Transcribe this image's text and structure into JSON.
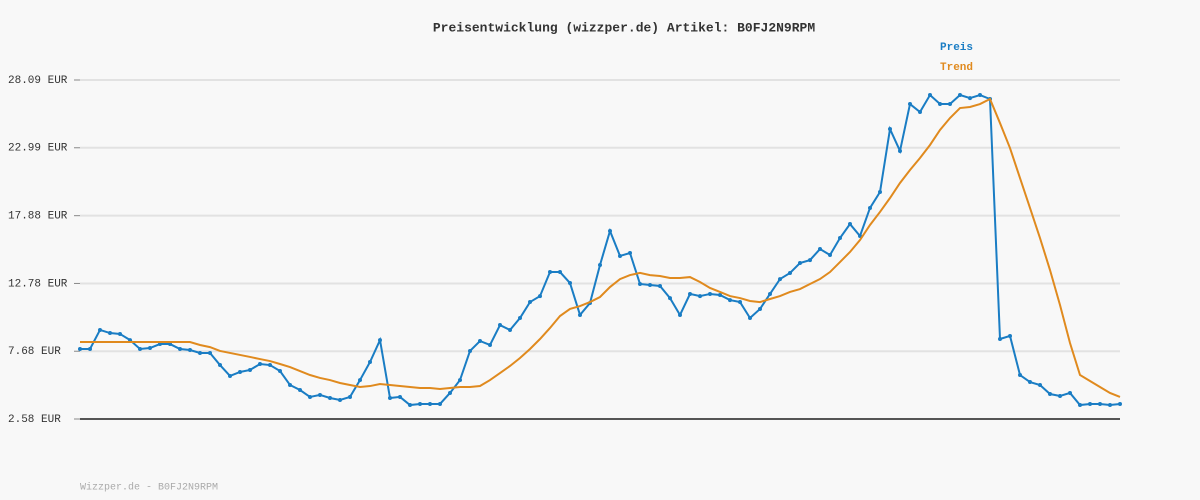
{
  "chart_data": {
    "type": "line",
    "title": "Preisentwicklung (wizzper.de) Artikel: B0FJ2N9RPM",
    "footer": "Wizzper.de - B0FJ2N9RPM",
    "categories": [
      null,
      null,
      null,
      null,
      null,
      null,
      null,
      null,
      null,
      null,
      null,
      null,
      null,
      null,
      null,
      null,
      null,
      null,
      null,
      null,
      null,
      null,
      null,
      null,
      null,
      null,
      null,
      null,
      null,
      null,
      null,
      null,
      null,
      null,
      null,
      null,
      null,
      null,
      null,
      null,
      null,
      null,
      null,
      null,
      null,
      null,
      null,
      null,
      null,
      null,
      null,
      null,
      null,
      null,
      null,
      null,
      null,
      null,
      null,
      null,
      null,
      null,
      null,
      null,
      null,
      null,
      null,
      null,
      null,
      null,
      null,
      null,
      null,
      null,
      null,
      null,
      null,
      null,
      null,
      null,
      null,
      null,
      null,
      null,
      null,
      null,
      null,
      null,
      null,
      null,
      null,
      null,
      null,
      null,
      null,
      null,
      null,
      null,
      null,
      null,
      null,
      null,
      null,
      null,
      null
    ],
    "series": [
      {
        "name": "Preis",
        "color": "#1a7dc4",
        "markers": true,
        "values": [
          7.85,
          7.85,
          9.28,
          9.05,
          8.98,
          8.52,
          7.85,
          7.92,
          8.22,
          8.22,
          7.85,
          7.77,
          7.55,
          7.55,
          6.64,
          5.82,
          6.12,
          6.27,
          6.72,
          6.64,
          6.19,
          5.14,
          4.76,
          4.24,
          4.39,
          4.16,
          4.01,
          4.24,
          5.51,
          6.87,
          8.52,
          4.16,
          4.24,
          3.63,
          3.71,
          3.71,
          3.71,
          4.54,
          5.51,
          7.7,
          8.45,
          8.15,
          9.65,
          9.28,
          10.18,
          11.38,
          11.83,
          13.64,
          13.64,
          12.81,
          10.41,
          11.31,
          14.17,
          16.73,
          14.85,
          15.07,
          12.74,
          12.66,
          12.59,
          11.68,
          10.41,
          11.99,
          11.83,
          11.99,
          11.91,
          11.53,
          11.38,
          10.18,
          10.86,
          11.99,
          13.11,
          13.57,
          14.32,
          14.54,
          15.37,
          14.92,
          16.2,
          17.25,
          16.35,
          18.46,
          19.66,
          24.4,
          22.75,
          26.28,
          25.68,
          26.96,
          26.28,
          26.28,
          26.96,
          26.73,
          26.96,
          26.66,
          8.6,
          8.83,
          5.89,
          5.36,
          5.14,
          4.46,
          4.31,
          4.54,
          3.63,
          3.71,
          3.71,
          3.63,
          3.71
        ]
      },
      {
        "name": "Trend",
        "color": "#e08a1e",
        "markers": false,
        "values": [
          8.37,
          8.37,
          8.37,
          8.37,
          8.37,
          8.37,
          8.37,
          8.37,
          8.37,
          8.37,
          8.37,
          8.37,
          8.15,
          7.99,
          7.7,
          7.55,
          7.4,
          7.25,
          7.09,
          6.94,
          6.72,
          6.49,
          6.19,
          5.89,
          5.67,
          5.51,
          5.29,
          5.14,
          4.99,
          5.06,
          5.21,
          5.14,
          5.06,
          4.99,
          4.91,
          4.91,
          4.84,
          4.91,
          4.99,
          4.99,
          5.06,
          5.51,
          6.04,
          6.57,
          7.17,
          7.85,
          8.6,
          9.43,
          10.33,
          10.86,
          11.08,
          11.38,
          11.76,
          12.51,
          13.11,
          13.41,
          13.57,
          13.41,
          13.34,
          13.19,
          13.19,
          13.26,
          12.89,
          12.44,
          12.14,
          11.83,
          11.68,
          11.46,
          11.38,
          11.61,
          11.83,
          12.14,
          12.36,
          12.74,
          13.11,
          13.64,
          14.39,
          15.15,
          16.05,
          17.18,
          18.16,
          19.21,
          20.34,
          21.32,
          22.22,
          23.2,
          24.33,
          25.23,
          25.98,
          26.06,
          26.28,
          26.66,
          24.85,
          22.97,
          20.71,
          18.46,
          16.2,
          13.79,
          11.16,
          8.3,
          5.89,
          5.44,
          4.99,
          4.54,
          4.24
        ]
      }
    ],
    "ylim": [
      2.58,
      28.09
    ],
    "yticks": [
      {
        "value": 2.58,
        "label": "2.58 EUR"
      },
      {
        "value": 7.68,
        "label": "7.68 EUR"
      },
      {
        "value": 12.78,
        "label": "12.78 EUR"
      },
      {
        "value": 17.88,
        "label": "17.88 EUR"
      },
      {
        "value": 22.99,
        "label": "22.99 EUR"
      },
      {
        "value": 28.09,
        "label": "28.09 EUR"
      }
    ],
    "grid": true,
    "legend": "top-right"
  }
}
